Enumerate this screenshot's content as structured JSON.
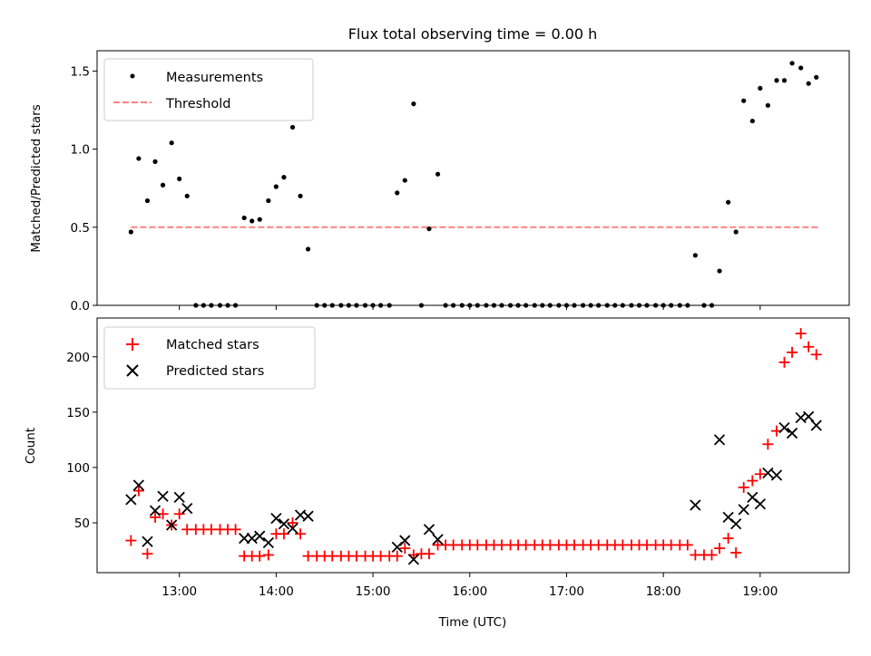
{
  "chart_data": [
    {
      "type": "scatter",
      "title": "Flux total observing time = 0.00 h",
      "xlabel": "",
      "ylabel": "Matched/Predicted stars",
      "ylim": [
        0,
        1.63
      ],
      "yticks": [
        "0.0",
        "0.5",
        "1.0",
        "1.5"
      ],
      "xlim_hours": [
        12.15,
        19.92
      ],
      "legend_position": "upper-left",
      "legend": [
        {
          "label": "Measurements",
          "marker": "dot",
          "color": "#000000"
        },
        {
          "label": "Threshold",
          "marker": "dashed-line",
          "color": "#ff8080"
        }
      ],
      "threshold": {
        "y": 0.5,
        "x_range_hours": [
          12.5,
          19.6
        ]
      },
      "series": [
        {
          "name": "Measurements",
          "color": "#000000",
          "x_hours": [
            12.5,
            12.58,
            12.67,
            12.75,
            12.83,
            12.92,
            13.0,
            13.08,
            13.17,
            13.25,
            13.33,
            13.42,
            13.5,
            13.58,
            13.67,
            13.75,
            13.83,
            13.92,
            14.0,
            14.08,
            14.17,
            14.25,
            14.33,
            14.42,
            14.5,
            14.58,
            14.67,
            14.75,
            14.83,
            14.92,
            15.0,
            15.08,
            15.17,
            15.25,
            15.33,
            15.42,
            15.5,
            15.58,
            15.67,
            15.75,
            15.83,
            15.92,
            16.0,
            16.08,
            16.17,
            16.25,
            16.33,
            16.42,
            16.5,
            16.58,
            16.67,
            16.75,
            16.83,
            16.92,
            17.0,
            17.08,
            17.17,
            17.25,
            17.33,
            17.42,
            17.5,
            17.58,
            17.67,
            17.75,
            17.83,
            17.92,
            18.0,
            18.08,
            18.17,
            18.25,
            18.33,
            18.42,
            18.5,
            18.58,
            18.67,
            18.75,
            18.83,
            18.92,
            19.0,
            19.08,
            19.17,
            19.25,
            19.33,
            19.42,
            19.5,
            19.58
          ],
          "y": [
            0.47,
            0.94,
            0.67,
            0.92,
            0.77,
            1.04,
            0.81,
            0.7,
            0.0,
            0.0,
            0.0,
            0.0,
            0.0,
            0.0,
            0.56,
            0.54,
            0.55,
            0.67,
            0.76,
            0.82,
            1.14,
            0.7,
            0.36,
            0.0,
            0.0,
            0.0,
            0.0,
            0.0,
            0.0,
            0.0,
            0.0,
            0.0,
            0.0,
            0.72,
            0.8,
            1.29,
            0.0,
            0.49,
            0.84,
            0.0,
            0.0,
            0.0,
            0.0,
            0.0,
            0.0,
            0.0,
            0.0,
            0.0,
            0.0,
            0.0,
            0.0,
            0.0,
            0.0,
            0.0,
            0.0,
            0.0,
            0.0,
            0.0,
            0.0,
            0.0,
            0.0,
            0.0,
            0.0,
            0.0,
            0.0,
            0.0,
            0.0,
            0.0,
            0.0,
            0.0,
            0.32,
            0.0,
            0.0,
            0.22,
            0.66,
            0.47,
            1.31,
            1.18,
            1.39,
            1.28,
            1.44,
            1.44,
            1.55,
            1.52,
            1.42,
            1.46
          ]
        }
      ]
    },
    {
      "type": "scatter",
      "title": "",
      "xlabel": "Time (UTC)",
      "ylabel": "Count",
      "ylim": [
        5,
        235
      ],
      "yticks": [
        "50",
        "100",
        "150",
        "200"
      ],
      "xticks": [
        "13:00",
        "14:00",
        "15:00",
        "16:00",
        "17:00",
        "18:00",
        "19:00"
      ],
      "xlim_hours": [
        12.15,
        19.92
      ],
      "legend_position": "upper-left",
      "legend": [
        {
          "label": "Matched stars",
          "marker": "plus",
          "color": "#ff0000"
        },
        {
          "label": "Predicted stars",
          "marker": "x",
          "color": "#000000"
        }
      ],
      "series": [
        {
          "name": "Matched stars",
          "marker": "plus",
          "color": "#ff0000",
          "x_hours": [
            12.5,
            12.58,
            12.67,
            12.75,
            12.83,
            12.92,
            13.0,
            13.08,
            13.17,
            13.25,
            13.33,
            13.42,
            13.5,
            13.58,
            13.67,
            13.75,
            13.83,
            13.92,
            14.0,
            14.08,
            14.17,
            14.25,
            14.33,
            14.42,
            14.5,
            14.58,
            14.67,
            14.75,
            14.83,
            14.92,
            15.0,
            15.08,
            15.17,
            15.25,
            15.33,
            15.42,
            15.5,
            15.58,
            15.67,
            15.75,
            15.83,
            15.92,
            16.0,
            16.08,
            16.17,
            16.25,
            16.33,
            16.42,
            16.5,
            16.58,
            16.67,
            16.75,
            16.83,
            16.92,
            17.0,
            17.08,
            17.17,
            17.25,
            17.33,
            17.42,
            17.5,
            17.58,
            17.67,
            17.75,
            17.83,
            17.92,
            18.0,
            18.08,
            18.17,
            18.25,
            18.33,
            18.42,
            18.5,
            18.58,
            18.67,
            18.75,
            18.83,
            18.92,
            19.0,
            19.08,
            19.17,
            19.25,
            19.33,
            19.42,
            19.5,
            19.58
          ],
          "y": [
            34,
            79,
            22,
            55,
            58,
            48,
            58,
            44,
            44,
            44,
            44,
            44,
            44,
            44,
            20,
            20,
            20,
            21,
            40,
            40,
            50,
            40,
            20,
            20,
            20,
            20,
            20,
            20,
            20,
            20,
            20,
            20,
            20,
            20,
            27,
            21,
            22,
            22,
            30,
            30,
            30,
            30,
            30,
            30,
            30,
            30,
            30,
            30,
            30,
            30,
            30,
            30,
            30,
            30,
            30,
            30,
            30,
            30,
            30,
            30,
            30,
            30,
            30,
            30,
            30,
            30,
            30,
            30,
            30,
            30,
            21,
            21,
            21,
            27,
            36,
            23,
            82,
            88,
            94,
            121,
            133,
            195,
            204,
            221,
            209,
            202
          ]
        },
        {
          "name": "Predicted stars",
          "marker": "x",
          "color": "#000000",
          "x_hours": [
            12.5,
            12.58,
            12.67,
            12.75,
            12.83,
            12.92,
            13.0,
            13.08,
            13.67,
            13.75,
            13.83,
            13.92,
            14.0,
            14.08,
            14.17,
            14.25,
            14.33,
            15.25,
            15.33,
            15.42,
            15.58,
            15.67,
            18.33,
            18.58,
            18.67,
            18.75,
            18.83,
            18.92,
            19.0,
            19.08,
            19.17,
            19.25,
            19.33,
            19.42,
            19.5,
            19.58
          ],
          "y": [
            71,
            84,
            33,
            61,
            74,
            48,
            73,
            63,
            36,
            36,
            38,
            32,
            54,
            49,
            45,
            57,
            56,
            28,
            34,
            17,
            44,
            35,
            66,
            125,
            55,
            49,
            62,
            73,
            67,
            95,
            93,
            136,
            131,
            145,
            146,
            138
          ]
        }
      ]
    }
  ]
}
